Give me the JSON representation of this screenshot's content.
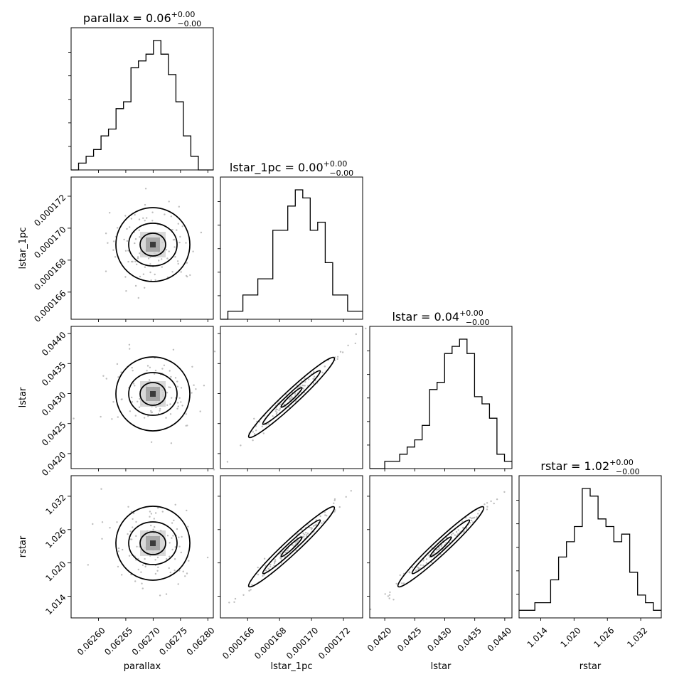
{
  "chart_data": {
    "type": "corner",
    "parameters": [
      {
        "name": "parallax",
        "title": "parallax = 0.06",
        "err_plus": "+0.00",
        "err_minus": "−0.00",
        "range": [
          0.06255,
          0.06281
        ],
        "ticks": [
          0.0626,
          0.06265,
          0.0627,
          0.06275,
          0.0628
        ],
        "tick_labels": [
          "0.06260",
          "0.06265",
          "0.06270",
          "0.06275",
          "0.06280"
        ],
        "hist_counts": [
          0,
          1,
          2,
          3,
          5,
          6,
          9,
          10,
          15,
          16,
          17,
          19,
          17,
          14,
          10,
          5,
          2,
          0,
          0
        ]
      },
      {
        "name": "lstar_1pc",
        "title": "lstar_1pc = 0.00",
        "err_plus": "+0.00",
        "err_minus": "−0.00",
        "range": [
          0.0001643,
          0.0001732
        ],
        "ticks": [
          0.000166,
          0.000168,
          0.00017,
          0.000172
        ],
        "tick_labels": [
          "0.000166",
          "0.000168",
          "0.000170",
          "0.000172"
        ],
        "hist_counts": [
          0,
          1,
          1,
          3,
          3,
          5,
          5,
          11,
          11,
          14,
          16,
          15,
          11,
          12,
          7,
          3,
          3,
          1,
          1
        ]
      },
      {
        "name": "lstar",
        "title": "lstar = 0.04",
        "err_plus": "+0.00",
        "err_minus": "−0.00",
        "range": [
          0.04175,
          0.04412
        ],
        "ticks": [
          0.042,
          0.0425,
          0.043,
          0.0435,
          0.044
        ],
        "tick_labels": [
          "0.0420",
          "0.0425",
          "0.0430",
          "0.0435",
          "0.0440"
        ],
        "hist_counts": [
          0,
          0,
          1,
          1,
          2,
          3,
          4,
          6,
          11,
          12,
          16,
          17,
          18,
          16,
          10,
          9,
          7,
          2,
          1
        ]
      },
      {
        "name": "rstar",
        "title": "rstar = 1.02",
        "err_plus": "+0.00",
        "err_minus": "−0.00",
        "range": [
          1.0101,
          1.0357
        ],
        "ticks": [
          1.014,
          1.02,
          1.026,
          1.032
        ],
        "tick_labels": [
          "1.014",
          "1.020",
          "1.026",
          "1.032"
        ],
        "hist_counts": [
          1,
          1,
          2,
          2,
          5,
          8,
          10,
          12,
          17,
          16,
          13,
          12,
          10,
          11,
          6,
          3,
          2,
          1
        ]
      }
    ]
  }
}
